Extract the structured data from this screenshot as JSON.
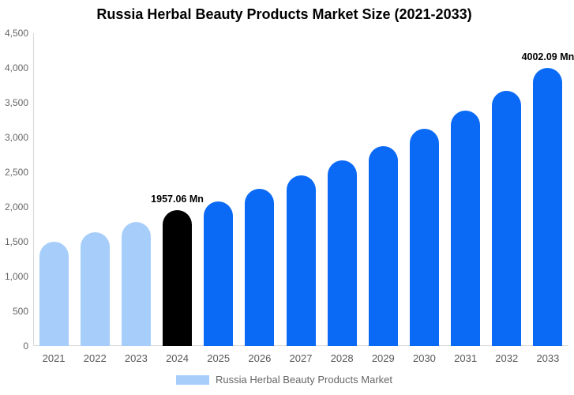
{
  "title": "Russia Herbal Beauty Products Market Size (2021-2033)",
  "colors": {
    "past_bar": "#A7CEFA",
    "current_bar": "#000000",
    "forecast_bar": "#0B6AF5",
    "axis_line": "#D8D8D8",
    "ytick_text": "#666666",
    "xlabel_text": "#595959",
    "value_label_text": "#000000",
    "legend_text": "#666666",
    "background": "#FFFFFF"
  },
  "chart_data": {
    "type": "bar",
    "title": "Russia Herbal Beauty Products Market Size (2021-2033)",
    "categories": [
      "2021",
      "2022",
      "2023",
      "2024",
      "2025",
      "2026",
      "2027",
      "2028",
      "2029",
      "2030",
      "2031",
      "2032",
      "2033"
    ],
    "values": [
      1500,
      1640,
      1780,
      1957.06,
      2085,
      2260,
      2450,
      2670,
      2870,
      3120,
      3390,
      3670,
      4002.09
    ],
    "bar_colors": [
      "#A7CEFA",
      "#A7CEFA",
      "#A7CEFA",
      "#000000",
      "#0B6AF5",
      "#0B6AF5",
      "#0B6AF5",
      "#0B6AF5",
      "#0B6AF5",
      "#0B6AF5",
      "#0B6AF5",
      "#0B6AF5",
      "#0B6AF5"
    ],
    "point_labels": [
      null,
      null,
      null,
      "1957.06 Mn",
      null,
      null,
      null,
      null,
      null,
      null,
      null,
      null,
      "4002.09 Mn"
    ],
    "xlabel": "",
    "ylabel": "",
    "ylim": [
      0,
      4500
    ],
    "ytick_step": 500,
    "ytick_labels": [
      "0",
      "500",
      "1,000",
      "1,500",
      "2,000",
      "2,500",
      "3,000",
      "3,500",
      "4,000",
      "4,500"
    ],
    "grid": false,
    "legend": {
      "position": "bottom-center",
      "entries": [
        {
          "label": "Russia Herbal Beauty Products Market",
          "swatch_color": "#A7CEFA"
        }
      ]
    }
  }
}
